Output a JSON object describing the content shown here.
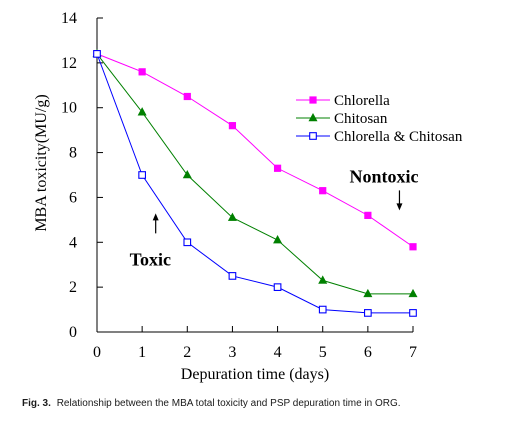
{
  "chart_data": {
    "type": "line",
    "xlabel": "Depuration time (days)",
    "ylabel": "MBA toxicity(MU/g)",
    "xlim": [
      0,
      7
    ],
    "ylim": [
      0,
      14
    ],
    "x_ticks": [
      "0",
      "1",
      "2",
      "3",
      "4",
      "5",
      "6",
      "7"
    ],
    "y_ticks": [
      "0",
      "2",
      "4",
      "6",
      "8",
      "10",
      "12",
      "14"
    ],
    "x": [
      0,
      1,
      2,
      3,
      4,
      5,
      6,
      7
    ],
    "grid": false,
    "legend_position": "upper-right",
    "series": [
      {
        "name": "Chlorella",
        "color": "#ff00ff",
        "marker": "filled-square",
        "values": [
          12.4,
          11.6,
          10.5,
          9.2,
          7.3,
          6.3,
          5.2,
          3.8
        ]
      },
      {
        "name": "Chitosan",
        "color": "#008000",
        "marker": "filled-triangle",
        "values": [
          12.4,
          9.8,
          7.0,
          5.1,
          4.1,
          2.3,
          1.7,
          1.7
        ]
      },
      {
        "name": "Chlorella & Chitosan",
        "color": "#0000ff",
        "marker": "open-square",
        "values": [
          12.4,
          7.0,
          4.0,
          2.5,
          2.0,
          1.0,
          0.85,
          0.85
        ]
      }
    ],
    "annotations": [
      {
        "text": "Toxic",
        "arrow": "up",
        "at_x": 1.3,
        "at_y": 5.2
      },
      {
        "text": "Nontoxic",
        "arrow": "down",
        "at_x": 6.7,
        "at_y": 5.6
      }
    ]
  },
  "caption": {
    "label": "Fig. 3.",
    "text": "Relationship between the MBA total toxicity and PSP depuration time in ORG."
  }
}
